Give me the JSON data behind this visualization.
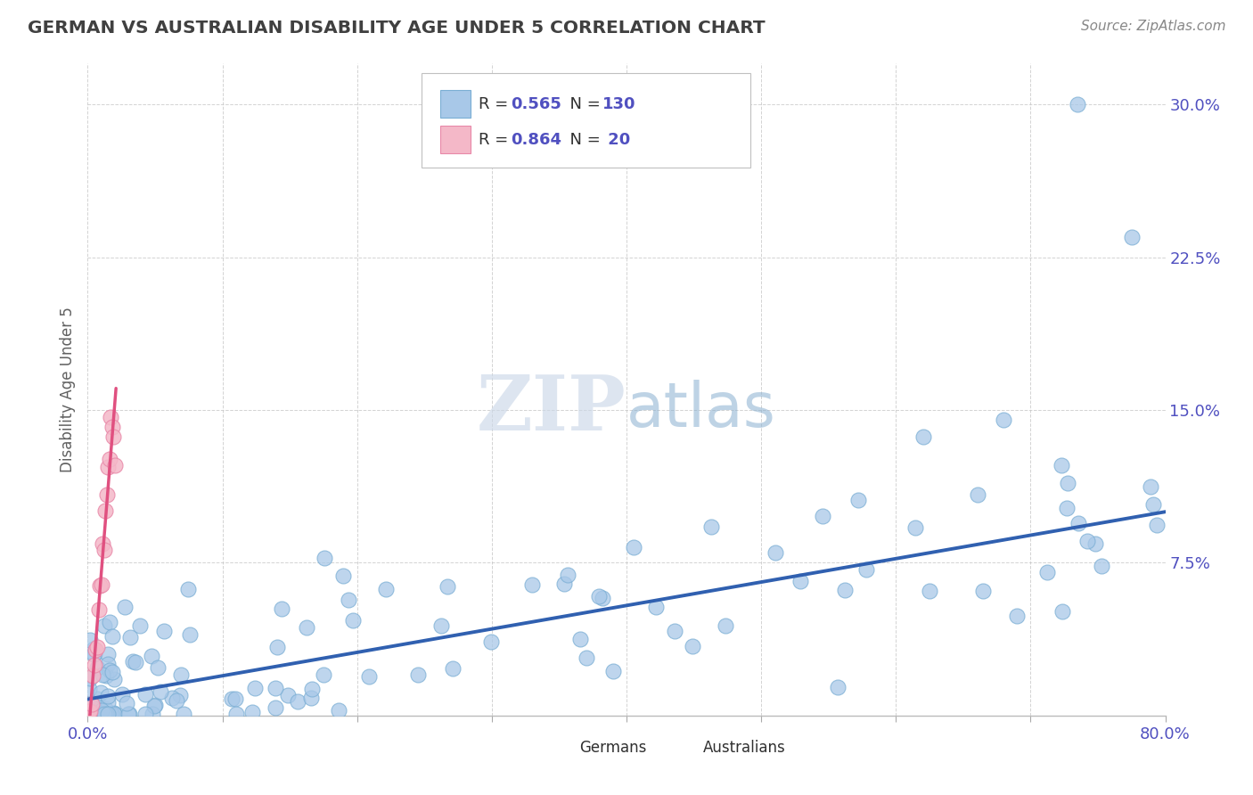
{
  "title": "GERMAN VS AUSTRALIAN DISABILITY AGE UNDER 5 CORRELATION CHART",
  "source": "Source: ZipAtlas.com",
  "ylabel": "Disability Age Under 5",
  "xlim": [
    0.0,
    0.8
  ],
  "ylim": [
    0.0,
    0.32
  ],
  "german_R": 0.565,
  "german_N": 130,
  "australian_R": 0.864,
  "australian_N": 20,
  "german_color": "#a8c8e8",
  "german_edge_color": "#7aaed4",
  "australian_color": "#f4b8c8",
  "australian_edge_color": "#e888a8",
  "german_line_color": "#3060b0",
  "australian_line_color": "#e05080",
  "watermark_color": "#ccd8e8",
  "background_color": "#ffffff",
  "grid_color": "#c8c8c8",
  "title_color": "#404040",
  "tick_color": "#5050c0",
  "source_color": "#888888"
}
